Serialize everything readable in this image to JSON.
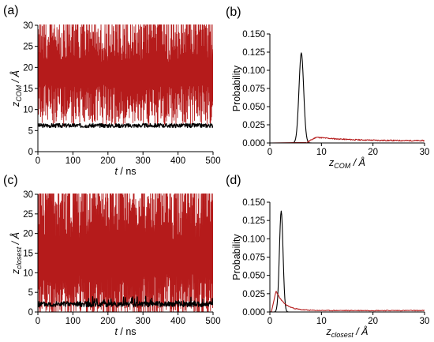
{
  "colors": {
    "red": "#b51b1b",
    "black": "#000000"
  },
  "chart_data": [
    {
      "id": "a",
      "letter": "(a)",
      "type": "line",
      "xlabel_italic": "t",
      "xlabel_unit": " / ns",
      "ylabel_main": "z",
      "ylabel_sub": "COM",
      "ylabel_unit": " / Å",
      "xlim": [
        0,
        500
      ],
      "ylim": [
        0,
        30
      ],
      "xticks": [
        0,
        100,
        200,
        300,
        400,
        500
      ],
      "yticks": [
        0,
        5,
        10,
        15,
        20,
        25,
        30
      ],
      "series": [
        {
          "color": "red",
          "kind": "noisy",
          "base": 8,
          "spread": 22,
          "seed": 7,
          "n": 700,
          "floor_mean": 11,
          "floor_spread": 5
        },
        {
          "color": "black",
          "kind": "flat",
          "mean": 6.2,
          "noise": 0.5,
          "seed": 3,
          "n": 500
        }
      ]
    },
    {
      "id": "b",
      "letter": "(b)",
      "type": "line",
      "xlabel_main": "z",
      "xlabel_sub": "COM",
      "xlabel_unit": " / Å",
      "ylabel": "Probability",
      "xlim": [
        0,
        30
      ],
      "ylim": [
        0,
        0.15
      ],
      "xticks": [
        0,
        10,
        20,
        30
      ],
      "yticks": [
        0.0,
        0.025,
        0.05,
        0.075,
        0.1,
        0.125,
        0.15
      ],
      "ytick_labels": [
        "0.000",
        "0.025",
        "0.050",
        "0.075",
        "0.100",
        "0.125",
        "0.150"
      ],
      "series": [
        {
          "color": "black",
          "kind": "peak",
          "center": 6.1,
          "width": 0.45,
          "height": 0.124,
          "start": 0,
          "end": 30
        },
        {
          "color": "red",
          "kind": "tail",
          "start": 7.0,
          "peak_x": 9.0,
          "peak": 0.008,
          "end": 30,
          "tail": 0.003,
          "noise": 0.0008,
          "seed": 11
        }
      ]
    },
    {
      "id": "c",
      "letter": "(c)",
      "type": "line",
      "xlabel_italic": "t",
      "xlabel_unit": " / ns",
      "ylabel_main": "z",
      "ylabel_sub": "closest",
      "ylabel_unit": " / Å",
      "xlim": [
        0,
        500
      ],
      "ylim": [
        0,
        30
      ],
      "xticks": [
        0,
        100,
        200,
        300,
        400,
        500
      ],
      "yticks": [
        0,
        5,
        10,
        15,
        20,
        25,
        30
      ],
      "series": [
        {
          "color": "red",
          "kind": "noisy",
          "base": 0,
          "spread": 30,
          "seed": 19,
          "n": 900,
          "floor_mean": 4,
          "floor_spread": 6
        },
        {
          "color": "black",
          "kind": "flat",
          "mean": 2.0,
          "noise": 0.7,
          "seed": 5,
          "n": 500,
          "xmax": 140
        }
      ]
    },
    {
      "id": "d",
      "letter": "(d)",
      "type": "line",
      "xlabel_main": "z",
      "xlabel_sub": "closest",
      "xlabel_unit": " / Å",
      "ylabel": "Probability",
      "xlim": [
        0,
        30
      ],
      "ylim": [
        0,
        0.15
      ],
      "xticks": [
        0,
        10,
        20,
        30
      ],
      "yticks": [
        0.0,
        0.025,
        0.05,
        0.075,
        0.1,
        0.125,
        0.15
      ],
      "ytick_labels": [
        "0.000",
        "0.025",
        "0.050",
        "0.075",
        "0.100",
        "0.125",
        "0.150"
      ],
      "series": [
        {
          "color": "black",
          "kind": "peak",
          "center": 2.2,
          "width": 0.35,
          "height": 0.138,
          "start": 0,
          "end": 30
        },
        {
          "color": "red",
          "kind": "tail",
          "start": 0.3,
          "peak_x": 1.2,
          "peak": 0.029,
          "end": 30,
          "tail": 0.002,
          "noise": 0.0006,
          "seed": 23,
          "decay": 1.6
        }
      ]
    }
  ]
}
